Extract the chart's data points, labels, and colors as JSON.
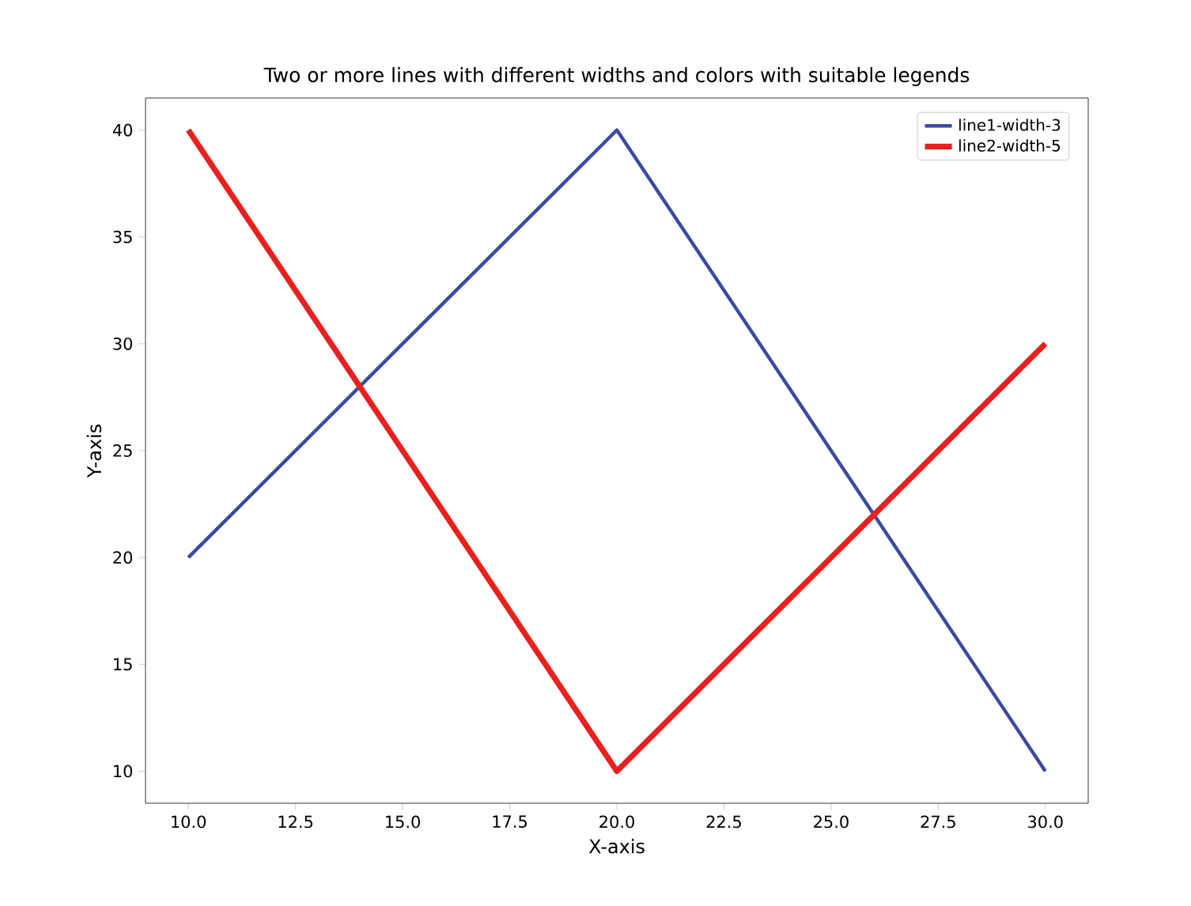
{
  "chart_data": {
    "type": "line",
    "title": "Two or more lines with different widths and colors with suitable legends",
    "xlabel": "X-axis",
    "ylabel": "Y-axis",
    "x": [
      10,
      20,
      30
    ],
    "series": [
      {
        "name": "line1-width-3",
        "color": "#3a4aa0",
        "values": [
          20,
          40,
          10
        ]
      },
      {
        "name": "line2-width-5",
        "color": "#e8201e",
        "values": [
          40,
          10,
          30
        ]
      }
    ],
    "xlim": [
      9,
      31
    ],
    "ylim": [
      8.5,
      41.5
    ],
    "xticks": [
      {
        "value": 10,
        "label": "10.0"
      },
      {
        "value": 12.5,
        "label": "12.5"
      },
      {
        "value": 15,
        "label": "15.0"
      },
      {
        "value": 17.5,
        "label": "17.5"
      },
      {
        "value": 20,
        "label": "20.0"
      },
      {
        "value": 22.5,
        "label": "22.5"
      },
      {
        "value": 25,
        "label": "25.0"
      },
      {
        "value": 27.5,
        "label": "27.5"
      },
      {
        "value": 30,
        "label": "30.0"
      }
    ],
    "yticks": [
      10,
      15,
      20,
      25,
      30,
      35,
      40
    ],
    "grid": false,
    "legend": "top right",
    "marker": "none",
    "line_style": "solid"
  }
}
